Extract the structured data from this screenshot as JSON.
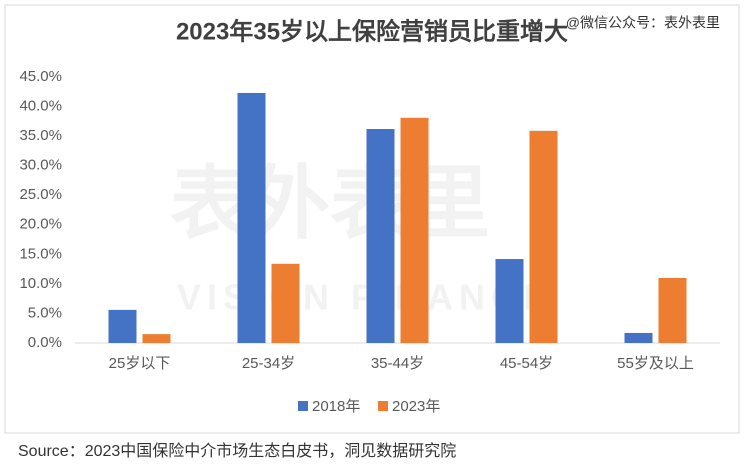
{
  "chart_data": {
    "type": "bar",
    "title": "2023年35岁以上保险营销员比重增大",
    "annotation": "@微信公众号：表外表里",
    "watermark": "表外表里",
    "watermark_sub": "VISION FINANCE",
    "source": "Source：2023中国保险中介市场生态白皮书，洞见数据研究院",
    "categories": [
      "25岁以下",
      "25-34岁",
      "35-44岁",
      "45-54岁",
      "55岁及以上"
    ],
    "series": [
      {
        "name": "2018年",
        "color": "#4472c4",
        "values": [
          5.6,
          42.3,
          36.2,
          14.2,
          1.7
        ]
      },
      {
        "name": "2023年",
        "color": "#ed7d31",
        "values": [
          1.5,
          13.4,
          38.1,
          35.9,
          11.0
        ]
      }
    ],
    "ylim": [
      0,
      45
    ],
    "yticks": [
      {
        "value": 0,
        "label": "0.0%"
      },
      {
        "value": 5,
        "label": "5.0%"
      },
      {
        "value": 10,
        "label": "10.0%"
      },
      {
        "value": 15,
        "label": "15.0%"
      },
      {
        "value": 20,
        "label": "20.0%"
      },
      {
        "value": 25,
        "label": "25.0%"
      },
      {
        "value": 30,
        "label": "30.0%"
      },
      {
        "value": 35,
        "label": "35.0%"
      },
      {
        "value": 40,
        "label": "40.0%"
      },
      {
        "value": 45,
        "label": "45.0%"
      }
    ],
    "grid": false,
    "legend": "bottom"
  }
}
